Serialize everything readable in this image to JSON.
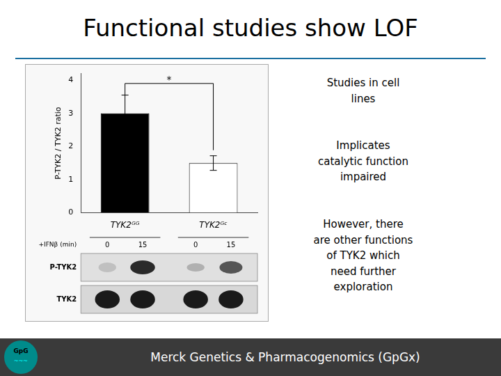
{
  "chart_data": {
    "type": "bar",
    "title": "Functional studies show LOF",
    "categories": [
      "TYK2ᴳᴳ",
      "TYK2ᴳᶜ"
    ],
    "values": [
      3.0,
      1.5
    ],
    "errors": [
      0.55,
      0.22
    ],
    "colors": [
      "#000000",
      "#ffffff"
    ],
    "ylabel": "P-TYK2 / TYK2 ratio",
    "ylim": [
      0,
      4.2
    ],
    "yticks": [
      0,
      1,
      2,
      3,
      4
    ],
    "grid": false,
    "legend": false,
    "annotations": [
      {
        "text": "*",
        "y": 3.9
      },
      {
        "text": "Studies in cell\nlines"
      },
      {
        "text": "Implicates\ncatalytic function\nimpaired"
      },
      {
        "text": "However, there\nare other functions\nof TYK2 which\nneed further\nexploration"
      },
      {
        "text": "Merck Genetics & Pharmacogenomics (GpGx)"
      },
      {
        "text": "+IFNβ (min)"
      },
      {
        "text": "0"
      },
      {
        "text": "15"
      },
      {
        "text": "0"
      },
      {
        "text": "15"
      },
      {
        "text": "P-TYK2"
      },
      {
        "text": "TYK2"
      },
      {
        "text": "GpG"
      },
      {
        "text": "~~~"
      }
    ]
  }
}
